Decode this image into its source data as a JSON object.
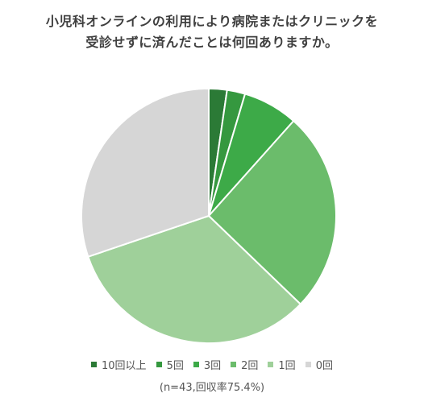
{
  "title_lines": [
    "小児科オンラインの利用により病院またはクリニックを",
    "受診せずに済んだことは何回ありますか。"
  ],
  "note": "(n=43,回収率75.4%)",
  "chart_data": {
    "type": "pie",
    "categories": [
      "10回以上",
      "5回",
      "3回",
      "2回",
      "1回",
      "0回"
    ],
    "values": [
      2.3,
      2.3,
      7.0,
      25.6,
      32.6,
      30.2
    ],
    "colors": [
      "#2b7a36",
      "#35983f",
      "#3daa48",
      "#6bbc6b",
      "#9fd09a",
      "#d6d6d6"
    ],
    "start": "top, clockwise",
    "legend_position": "bottom"
  }
}
